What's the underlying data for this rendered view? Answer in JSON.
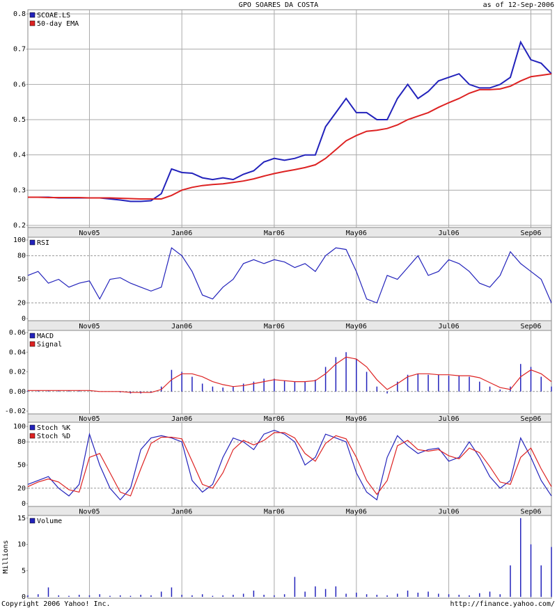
{
  "header": {
    "title": "GPO SOARES DA COSTA",
    "date": "as of 12-Sep-2006"
  },
  "footer": {
    "copyright": "Copyright 2006 Yahoo! Inc.",
    "url": "http://finance.yahoo.com/"
  },
  "chart_data": [
    {
      "type": "line",
      "categories": [
        null,
        null,
        null,
        null,
        null,
        null,
        "Nov05",
        null,
        null,
        null,
        null,
        null,
        null,
        null,
        null,
        "Jan06",
        null,
        null,
        null,
        null,
        null,
        null,
        null,
        null,
        "Mar06",
        null,
        null,
        null,
        null,
        null,
        null,
        null,
        "May06",
        null,
        null,
        null,
        null,
        null,
        null,
        null,
        null,
        "Jul06",
        null,
        null,
        null,
        null,
        null,
        null,
        null,
        "Sep06",
        null,
        null
      ],
      "series": [
        {
          "name": "SCOAE.LS",
          "color": "#2222bb",
          "values": [
            0.28,
            0.28,
            0.28,
            0.278,
            0.278,
            0.278,
            0.278,
            0.278,
            0.275,
            0.272,
            0.268,
            0.268,
            0.27,
            0.29,
            0.36,
            0.35,
            0.348,
            0.335,
            0.33,
            0.335,
            0.33,
            0.345,
            0.355,
            0.38,
            0.39,
            0.385,
            0.39,
            0.4,
            0.4,
            0.48,
            0.52,
            0.56,
            0.52,
            0.52,
            0.5,
            0.5,
            0.56,
            0.6,
            0.56,
            0.58,
            0.61,
            0.62,
            0.63,
            0.6,
            0.59,
            0.59,
            0.6,
            0.62,
            0.72,
            0.67,
            0.66,
            0.63
          ]
        },
        {
          "name": "50-day EMA",
          "color": "#dd2222",
          "values": [
            0.28,
            0.28,
            0.279,
            0.279,
            0.279,
            0.279,
            0.278,
            0.278,
            0.278,
            0.277,
            0.276,
            0.275,
            0.275,
            0.275,
            0.285,
            0.3,
            0.308,
            0.313,
            0.316,
            0.318,
            0.322,
            0.326,
            0.332,
            0.34,
            0.347,
            0.353,
            0.358,
            0.364,
            0.372,
            0.39,
            0.415,
            0.44,
            0.455,
            0.467,
            0.47,
            0.475,
            0.485,
            0.5,
            0.51,
            0.52,
            0.535,
            0.548,
            0.56,
            0.575,
            0.585,
            0.585,
            0.587,
            0.595,
            0.61,
            0.622,
            0.626,
            0.63
          ]
        }
      ],
      "ylim": [
        0.2,
        0.8
      ],
      "yticks": [
        0.2,
        0.3,
        0.4,
        0.5,
        0.6,
        0.7,
        0.8
      ],
      "grid": true
    },
    {
      "type": "line",
      "series": [
        {
          "name": "RSI",
          "color": "#2222bb",
          "values": [
            55,
            60,
            45,
            50,
            40,
            45,
            48,
            25,
            50,
            52,
            45,
            40,
            35,
            40,
            90,
            80,
            60,
            30,
            25,
            40,
            50,
            70,
            75,
            70,
            75,
            72,
            65,
            70,
            60,
            80,
            90,
            88,
            60,
            25,
            20,
            55,
            50,
            65,
            80,
            55,
            60,
            75,
            70,
            60,
            45,
            40,
            55,
            85,
            70,
            60,
            50,
            20
          ]
        }
      ],
      "ylim": [
        0,
        100
      ],
      "yticks": [
        0,
        20,
        50,
        80,
        100
      ],
      "dashed_lines": [
        20,
        80
      ]
    },
    {
      "type": "bar-line",
      "series": [
        {
          "name": "MACD",
          "color": "#2222bb",
          "style": "bar",
          "values": [
            0.001,
            0.001,
            0.001,
            0.001,
            0.001,
            0.001,
            0,
            0,
            0,
            -0.001,
            -0.002,
            -0.002,
            -0.001,
            0.005,
            0.022,
            0.02,
            0.015,
            0.008,
            0.005,
            0.004,
            0.005,
            0.008,
            0.01,
            0.013,
            0.013,
            0.011,
            0.01,
            0.01,
            0.012,
            0.025,
            0.035,
            0.04,
            0.033,
            0.02,
            0.005,
            -0.002,
            0.01,
            0.017,
            0.018,
            0.017,
            0.017,
            0.016,
            0.016,
            0.015,
            0.01,
            0.005,
            0.002,
            0.005,
            0.028,
            0.025,
            0.015,
            0.005
          ]
        },
        {
          "name": "Signal",
          "color": "#dd2222",
          "style": "line",
          "values": [
            0.001,
            0.001,
            0.001,
            0.001,
            0.001,
            0.001,
            0.001,
            0,
            0,
            0,
            -0.001,
            -0.001,
            -0.001,
            0.002,
            0.012,
            0.018,
            0.018,
            0.015,
            0.01,
            0.007,
            0.005,
            0.006,
            0.008,
            0.01,
            0.012,
            0.011,
            0.01,
            0.01,
            0.011,
            0.018,
            0.028,
            0.035,
            0.033,
            0.025,
            0.012,
            0.002,
            0.008,
            0.015,
            0.018,
            0.018,
            0.017,
            0.017,
            0.016,
            0.016,
            0.014,
            0.009,
            0.004,
            0.002,
            0.015,
            0.022,
            0.018,
            0.01
          ]
        }
      ],
      "ylim": [
        -0.02,
        0.06
      ],
      "yticks": [
        -0.02,
        {
          "value": 0,
          "label": "0.00"
        },
        0.02,
        0.04,
        0.06
      ],
      "dashed_lines": [
        0
      ]
    },
    {
      "type": "line",
      "series": [
        {
          "name": "Stoch %K",
          "color": "#2222bb",
          "values": [
            25,
            30,
            35,
            20,
            10,
            25,
            90,
            50,
            20,
            5,
            20,
            70,
            85,
            88,
            85,
            80,
            30,
            15,
            25,
            60,
            85,
            80,
            70,
            90,
            95,
            90,
            80,
            50,
            60,
            90,
            85,
            80,
            40,
            15,
            5,
            60,
            88,
            75,
            65,
            70,
            72,
            55,
            60,
            80,
            60,
            35,
            20,
            30,
            85,
            60,
            30,
            10
          ]
        },
        {
          "name": "Stoch %D",
          "color": "#dd2222",
          "values": [
            22,
            28,
            32,
            28,
            18,
            15,
            60,
            65,
            40,
            15,
            10,
            45,
            78,
            86,
            86,
            84,
            55,
            25,
            20,
            40,
            70,
            82,
            76,
            82,
            92,
            92,
            85,
            65,
            55,
            78,
            88,
            84,
            60,
            30,
            12,
            30,
            75,
            82,
            70,
            68,
            70,
            62,
            58,
            72,
            66,
            48,
            28,
            25,
            60,
            72,
            45,
            22
          ]
        }
      ],
      "ylim": [
        0,
        100
      ],
      "yticks": [
        0,
        20,
        50,
        80,
        100
      ],
      "dashed_lines": [
        20,
        80
      ]
    },
    {
      "type": "bar",
      "y_label": "Millions",
      "series": [
        {
          "name": "Volume",
          "color": "#2222bb",
          "style": "bar",
          "values": [
            0.3,
            0.5,
            1.8,
            0.3,
            0.2,
            0.4,
            0.3,
            0.5,
            0.2,
            0.3,
            0.2,
            0.4,
            0.3,
            1.0,
            1.8,
            0.4,
            0.3,
            0.5,
            0.2,
            0.3,
            0.4,
            0.6,
            1.2,
            0.4,
            0.3,
            0.5,
            3.8,
            1.0,
            2.0,
            1.5,
            2.0,
            0.6,
            0.8,
            0.5,
            0.4,
            0.3,
            0.6,
            1.2,
            0.8,
            1.0,
            0.6,
            0.5,
            0.4,
            0.3,
            0.7,
            1.0,
            0.5,
            6.0,
            15.0,
            10.0,
            6.0,
            9.5
          ]
        }
      ],
      "ylim": [
        0,
        15.5
      ],
      "yticks": [
        0,
        5,
        10,
        15
      ]
    }
  ]
}
